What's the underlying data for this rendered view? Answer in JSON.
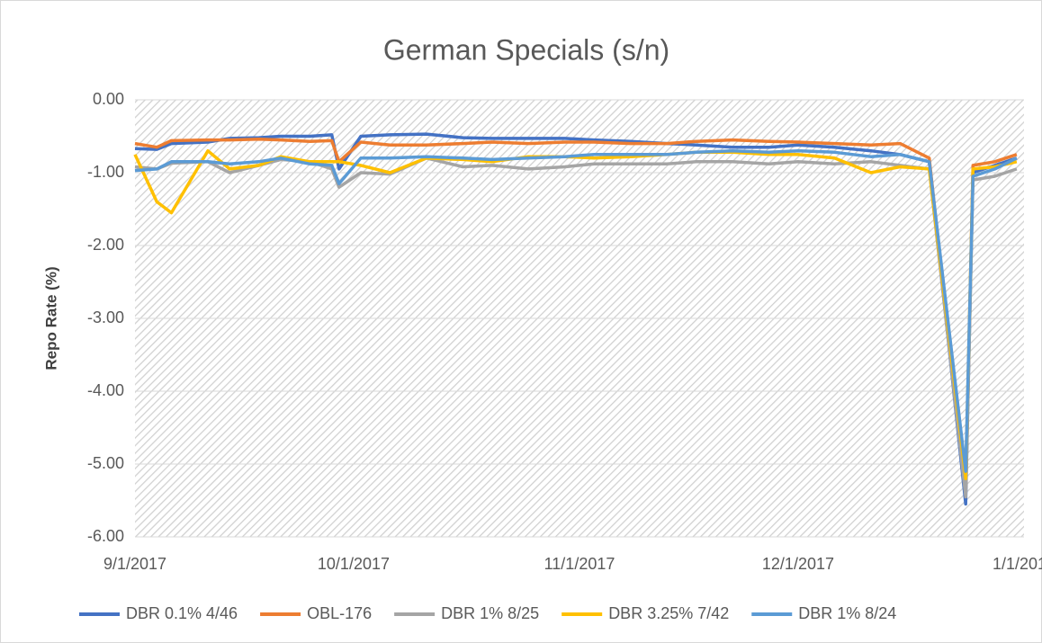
{
  "chart_data": {
    "type": "line",
    "title": "German Specials (s/n)",
    "y_label": "Repo Rate (%)",
    "x": [
      "9/1/2017",
      "9/4/2017",
      "9/6/2017",
      "9/11/2017",
      "9/14/2017",
      "9/18/2017",
      "9/21/2017",
      "9/25/2017",
      "9/28/2017",
      "9/29/2017",
      "10/2/2017",
      "10/6/2017",
      "10/11/2017",
      "10/16/2017",
      "10/20/2017",
      "10/25/2017",
      "10/30/2017",
      "11/3/2017",
      "11/8/2017",
      "11/13/2017",
      "11/17/2017",
      "11/22/2017",
      "11/27/2017",
      "12/1/2017",
      "12/6/2017",
      "12/11/2017",
      "12/15/2017",
      "12/19/2017",
      "12/24/2017",
      "12/25/2017",
      "12/28/2017",
      "12/31/2017"
    ],
    "series": [
      {
        "name": "DBR 0.1% 4/46",
        "color": "#4472c4",
        "values": [
          -0.67,
          -0.68,
          -0.6,
          -0.58,
          -0.53,
          -0.52,
          -0.5,
          -0.5,
          -0.48,
          -0.95,
          -0.5,
          -0.48,
          -0.47,
          -0.52,
          -0.53,
          -0.53,
          -0.53,
          -0.55,
          -0.57,
          -0.6,
          -0.62,
          -0.65,
          -0.65,
          -0.62,
          -0.65,
          -0.7,
          -0.75,
          -0.85,
          -5.55,
          -1.0,
          -0.9,
          -0.8
        ]
      },
      {
        "name": "OBL-176",
        "color": "#ed7d31",
        "values": [
          -0.6,
          -0.65,
          -0.56,
          -0.55,
          -0.55,
          -0.54,
          -0.55,
          -0.57,
          -0.56,
          -0.85,
          -0.58,
          -0.62,
          -0.62,
          -0.6,
          -0.58,
          -0.6,
          -0.58,
          -0.58,
          -0.6,
          -0.6,
          -0.57,
          -0.55,
          -0.57,
          -0.58,
          -0.6,
          -0.62,
          -0.6,
          -0.8,
          -5.4,
          -0.9,
          -0.85,
          -0.75
        ]
      },
      {
        "name": "DBR 1% 8/25",
        "color": "#a5a5a5",
        "values": [
          -0.92,
          -0.95,
          -0.87,
          -0.85,
          -1.0,
          -0.9,
          -0.82,
          -0.85,
          -0.95,
          -1.2,
          -1.0,
          -1.02,
          -0.8,
          -0.92,
          -0.9,
          -0.95,
          -0.92,
          -0.88,
          -0.88,
          -0.88,
          -0.85,
          -0.85,
          -0.88,
          -0.85,
          -0.88,
          -0.85,
          -0.9,
          -0.95,
          -5.45,
          -1.1,
          -1.05,
          -0.95
        ]
      },
      {
        "name": "DBR 3.25% 7/42",
        "color": "#ffc000",
        "values": [
          -0.75,
          -1.4,
          -1.55,
          -0.7,
          -0.95,
          -0.9,
          -0.78,
          -0.85,
          -0.85,
          -0.85,
          -0.9,
          -1.0,
          -0.8,
          -0.82,
          -0.85,
          -0.78,
          -0.78,
          -0.8,
          -0.78,
          -0.75,
          -0.72,
          -0.72,
          -0.75,
          -0.75,
          -0.8,
          -1.0,
          -0.92,
          -0.95,
          -5.2,
          -0.95,
          -0.92,
          -0.85
        ]
      },
      {
        "name": "DBR 1% 8/24",
        "color": "#5b9bd5",
        "values": [
          -0.97,
          -0.95,
          -0.85,
          -0.85,
          -0.88,
          -0.85,
          -0.8,
          -0.88,
          -0.9,
          -1.15,
          -0.8,
          -0.8,
          -0.78,
          -0.8,
          -0.82,
          -0.8,
          -0.78,
          -0.75,
          -0.75,
          -0.75,
          -0.72,
          -0.7,
          -0.72,
          -0.7,
          -0.72,
          -0.78,
          -0.75,
          -0.85,
          -5.1,
          -1.05,
          -0.95,
          -0.8
        ]
      }
    ],
    "xlim": [
      "9/1/2017",
      "1/1/2018"
    ],
    "xticks": [
      "9/1/2017",
      "10/1/2017",
      "11/1/2017",
      "12/1/2017",
      "1/1/2018"
    ],
    "ylim": [
      -6,
      0
    ],
    "yticks": [
      {
        "value": 0,
        "label": "0.00"
      },
      {
        "value": -1,
        "label": "-1.00"
      },
      {
        "value": -2,
        "label": "-2.00"
      },
      {
        "value": -3,
        "label": "-3.00"
      },
      {
        "value": -4,
        "label": "-4.00"
      },
      {
        "value": -5,
        "label": "-5.00"
      },
      {
        "value": -6,
        "label": "-6.00"
      }
    ],
    "grid": true,
    "legend": "bottom"
  }
}
